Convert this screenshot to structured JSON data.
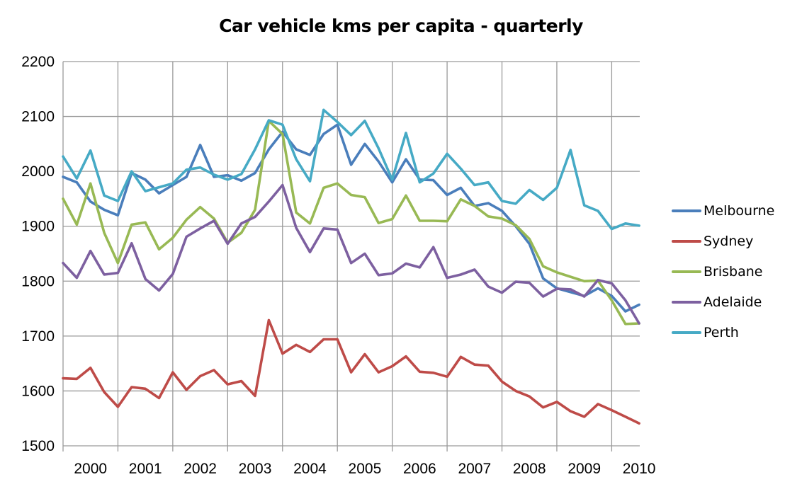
{
  "chart_data": {
    "type": "line",
    "title": "Car vehicle kms per capita - quarterly",
    "xlabel": "",
    "ylabel": "",
    "ylim": [
      1500,
      2200
    ],
    "yticks": [
      1500,
      1600,
      1700,
      1800,
      1900,
      2000,
      2100,
      2200
    ],
    "year_labels": [
      "2000",
      "2001",
      "2002",
      "2003",
      "2004",
      "2005",
      "2006",
      "2007",
      "2008",
      "2009",
      "2010"
    ],
    "points_per_year": 4,
    "grid": true,
    "legend_position": "right",
    "series": [
      {
        "name": "Melbourne",
        "color": "#4a7ebb",
        "values": [
          1990,
          1980,
          1945,
          1930,
          1920,
          1997,
          1985,
          1960,
          1975,
          1990,
          2048,
          1990,
          1993,
          1983,
          1997,
          2040,
          2072,
          2040,
          2030,
          2068,
          2085,
          2012,
          2050,
          2018,
          1980,
          2022,
          1985,
          1984,
          1957,
          1970,
          1937,
          1942,
          1928,
          1900,
          1868,
          1805,
          1787,
          1780,
          1773,
          1787,
          1773,
          1745,
          1757
        ]
      },
      {
        "name": "Sydney",
        "color": "#be4b48",
        "values": [
          1623,
          1622,
          1642,
          1598,
          1571,
          1607,
          1604,
          1587,
          1634,
          1602,
          1627,
          1638,
          1612,
          1618,
          1591,
          1729,
          1668,
          1684,
          1671,
          1694,
          1694,
          1634,
          1667,
          1634,
          1645,
          1663,
          1635,
          1633,
          1626,
          1662,
          1648,
          1646,
          1617,
          1600,
          1590,
          1570,
          1580,
          1563,
          1553,
          1576,
          1565,
          1553,
          1541
        ]
      },
      {
        "name": "Brisbane",
        "color": "#98b954",
        "values": [
          1950,
          1903,
          1978,
          1888,
          1833,
          1903,
          1907,
          1858,
          1879,
          1912,
          1935,
          1914,
          1870,
          1888,
          1930,
          2092,
          2068,
          1925,
          1905,
          1970,
          1978,
          1957,
          1953,
          1906,
          1913,
          1956,
          1910,
          1910,
          1909,
          1949,
          1937,
          1918,
          1914,
          1902,
          1877,
          1827,
          1816,
          1808,
          1800,
          1801,
          1765,
          1722,
          1723
        ]
      },
      {
        "name": "Adelaide",
        "color": "#7d60a0",
        "values": [
          1833,
          1806,
          1855,
          1812,
          1815,
          1869,
          1804,
          1783,
          1813,
          1881,
          1896,
          1910,
          1868,
          1905,
          1917,
          1945,
          1975,
          1897,
          1853,
          1896,
          1894,
          1833,
          1850,
          1811,
          1814,
          1832,
          1825,
          1862,
          1806,
          1812,
          1821,
          1790,
          1779,
          1799,
          1797,
          1772,
          1786,
          1785,
          1772,
          1802,
          1796,
          1765,
          1723
        ]
      },
      {
        "name": "Perth",
        "color": "#46aac5",
        "values": [
          2027,
          1987,
          2038,
          1956,
          1946,
          2000,
          1964,
          1971,
          1978,
          2003,
          2007,
          1994,
          1985,
          1995,
          2040,
          2093,
          2085,
          2022,
          1982,
          2112,
          2090,
          2066,
          2092,
          2042,
          1985,
          2070,
          1980,
          1996,
          2032,
          2005,
          1975,
          1980,
          1946,
          1941,
          1966,
          1948,
          1970,
          2039,
          1938,
          1928,
          1895,
          1905,
          1901
        ]
      }
    ]
  }
}
